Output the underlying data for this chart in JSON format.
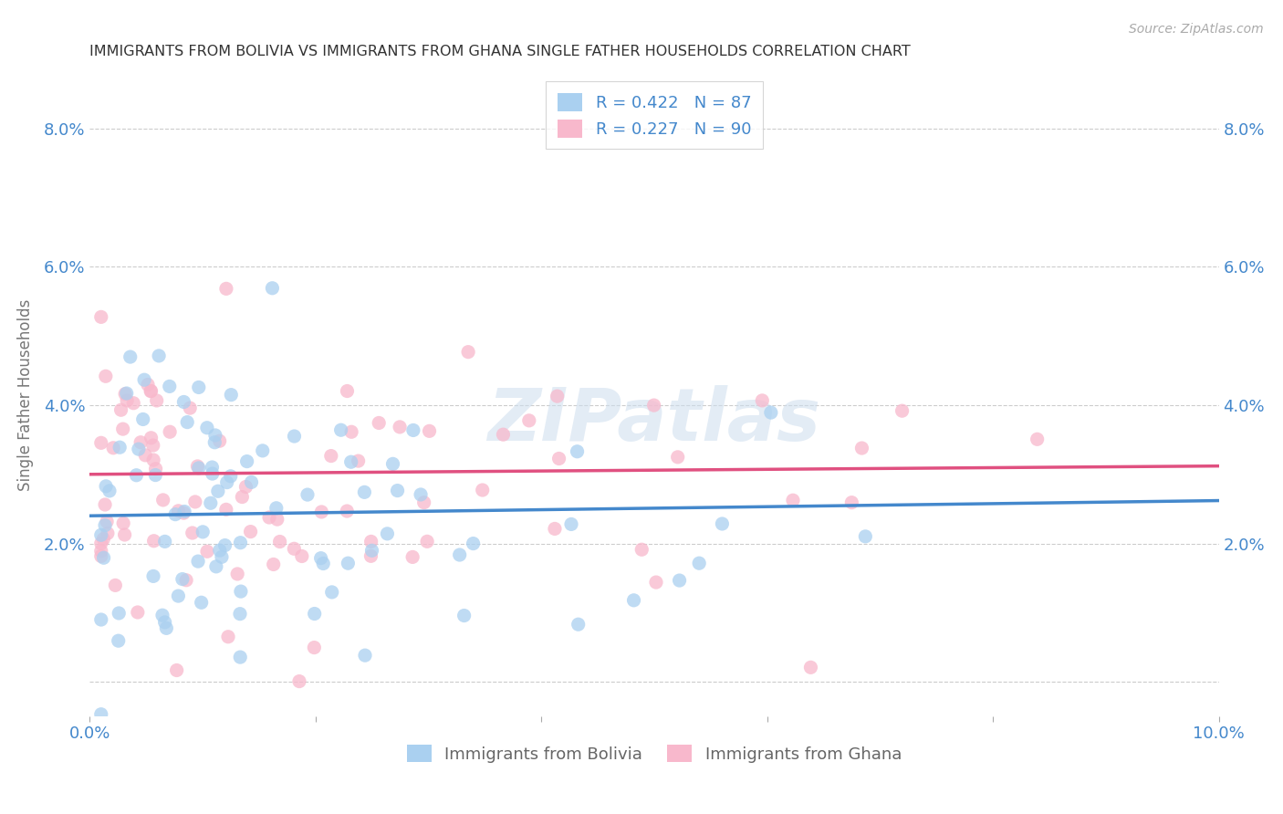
{
  "title": "IMMIGRANTS FROM BOLIVIA VS IMMIGRANTS FROM GHANA SINGLE FATHER HOUSEHOLDS CORRELATION CHART",
  "source": "Source: ZipAtlas.com",
  "ylabel": "Single Father Households",
  "xlabel_bolivia": "Immigrants from Bolivia",
  "xlabel_ghana": "Immigrants from Ghana",
  "xmin": 0.0,
  "xmax": 0.1,
  "ymin": -0.005,
  "ymax": 0.088,
  "yticks": [
    0.0,
    0.02,
    0.04,
    0.06,
    0.08
  ],
  "ytick_labels": [
    "",
    "2.0%",
    "4.0%",
    "6.0%",
    "8.0%"
  ],
  "xticks": [
    0.0,
    0.02,
    0.04,
    0.06,
    0.08,
    0.1
  ],
  "xtick_labels": [
    "0.0%",
    "",
    "",
    "",
    "",
    "10.0%"
  ],
  "R_bolivia": 0.422,
  "N_bolivia": 87,
  "R_ghana": 0.227,
  "N_ghana": 90,
  "color_bolivia": "#aad0f0",
  "color_ghana": "#f8b8cc",
  "line_color_bolivia": "#4488cc",
  "line_color_ghana": "#e05080",
  "title_color": "#333333",
  "axis_color": "#4488cc",
  "watermark": "ZIPatlas",
  "background_color": "#ffffff",
  "grid_color": "#cccccc",
  "bolivia_intercept": 0.024,
  "bolivia_slope": 0.022,
  "ghana_intercept": 0.03,
  "ghana_slope": 0.012
}
